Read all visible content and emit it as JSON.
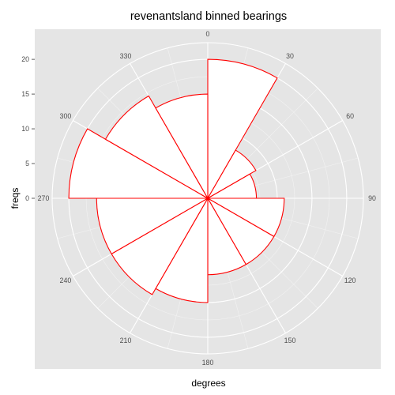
{
  "chart_data": {
    "type": "bar",
    "coord": "polar",
    "title": "revenantsland binned bearings",
    "xlabel": "degrees",
    "ylabel": "freqs",
    "x_ticks": [
      "0",
      "30",
      "60",
      "90",
      "120",
      "150",
      "180",
      "210",
      "240",
      "270",
      "300",
      "330"
    ],
    "y_ticks": [
      "0",
      "5",
      "10",
      "15",
      "20"
    ],
    "ylim": [
      0,
      22.4
    ],
    "bin_width": 30,
    "grid": true,
    "bins": [
      {
        "start": 0,
        "end": 30,
        "value": 20
      },
      {
        "start": 30,
        "end": 60,
        "value": 8
      },
      {
        "start": 60,
        "end": 90,
        "value": 7
      },
      {
        "start": 90,
        "end": 120,
        "value": 11
      },
      {
        "start": 120,
        "end": 150,
        "value": 11
      },
      {
        "start": 150,
        "end": 180,
        "value": 11
      },
      {
        "start": 180,
        "end": 210,
        "value": 15
      },
      {
        "start": 210,
        "end": 240,
        "value": 16
      },
      {
        "start": 240,
        "end": 270,
        "value": 16
      },
      {
        "start": 270,
        "end": 300,
        "value": 20
      },
      {
        "start": 300,
        "end": 330,
        "value": 17
      },
      {
        "start": 330,
        "end": 360,
        "value": 15
      }
    ],
    "colors": {
      "panel": "#E5E5E5",
      "grid_major": "#FFFFFF",
      "grid_minor": "#F2F2F2",
      "bar_fill": "#FFFFFF",
      "bar_outline": "#FF0000",
      "tick_text": "#4D4D4D"
    }
  }
}
